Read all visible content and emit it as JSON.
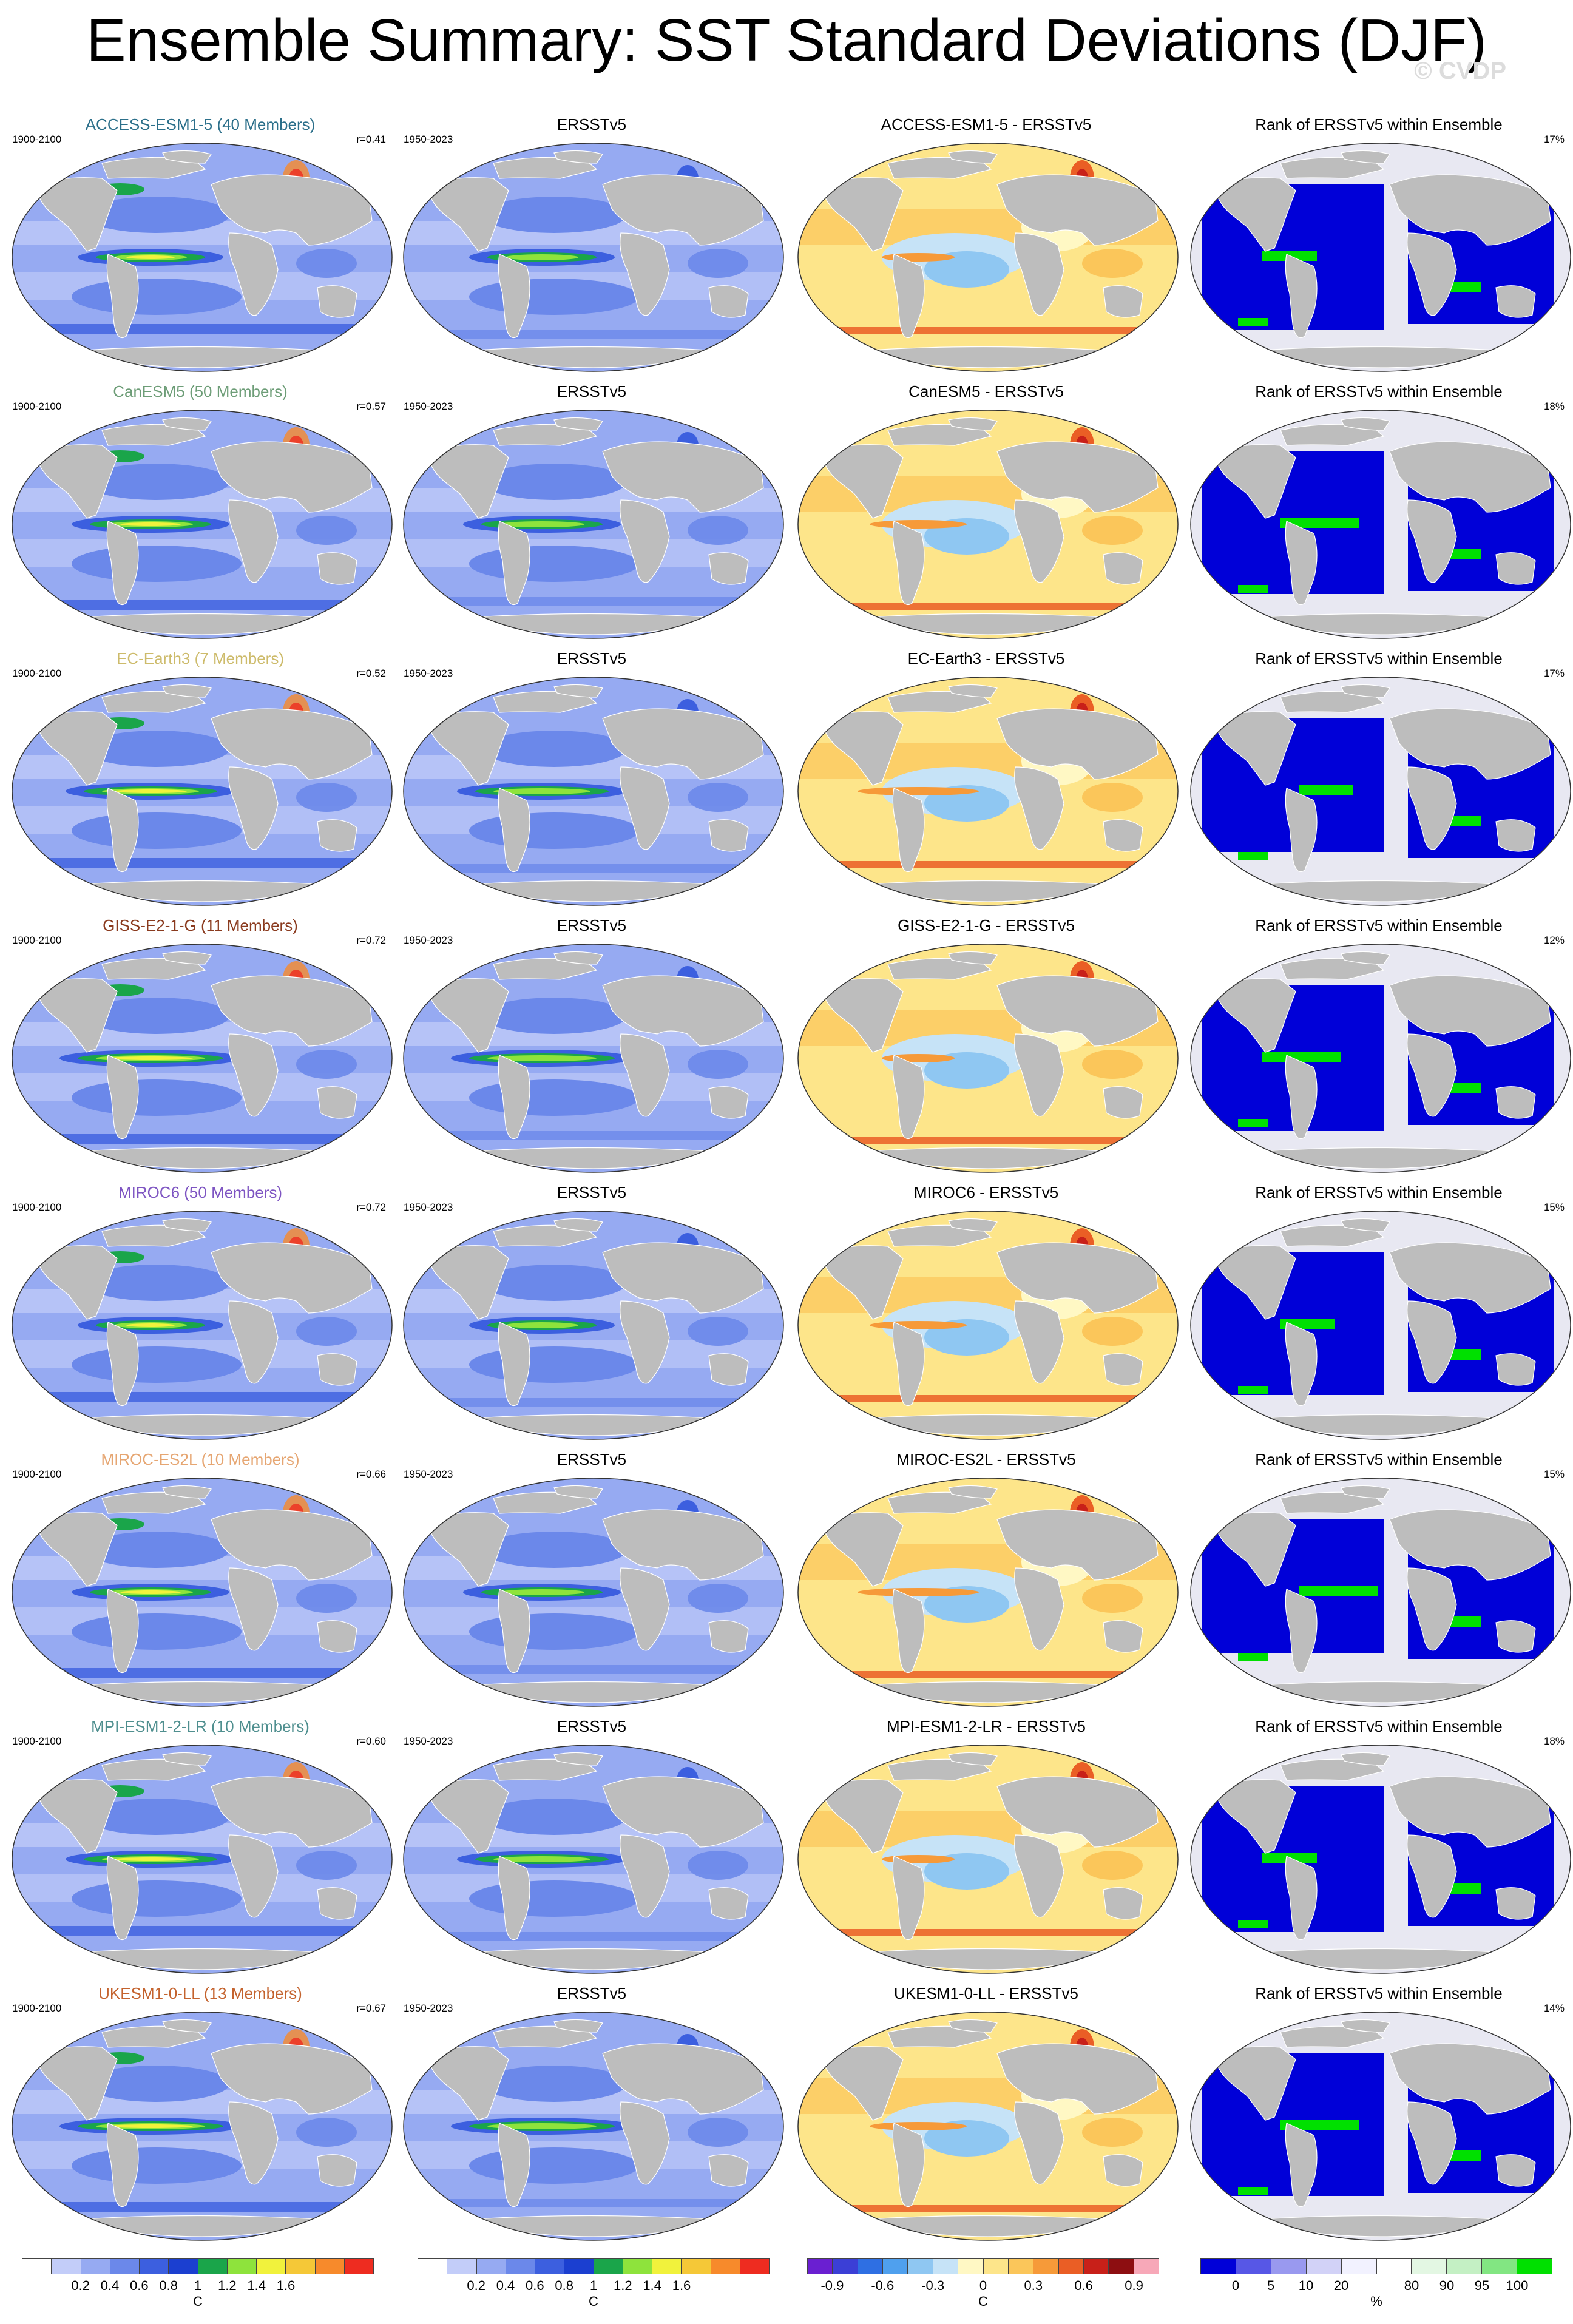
{
  "title": "Ensemble Summary: SST Standard Deviations (DJF)",
  "watermark": "© CVDP",
  "rows": [
    {
      "model": "ACCESS-ESM1-5 (40 Members)",
      "model_color": "#2b6f8a",
      "diff": "ACCESS-ESM1-5 - ERSSTv5",
      "r": "r=0.41",
      "rank_pct": "17%"
    },
    {
      "model": "CanESM5 (50 Members)",
      "model_color": "#6d9d77",
      "diff": "CanESM5 - ERSSTv5",
      "r": "r=0.57",
      "rank_pct": "18%"
    },
    {
      "model": "EC-Earth3 (7 Members)",
      "model_color": "#cdbb6b",
      "diff": "EC-Earth3 - ERSSTv5",
      "r": "r=0.52",
      "rank_pct": "17%"
    },
    {
      "model": "GISS-E2-1-G (11 Members)",
      "model_color": "#8a3a1e",
      "diff": "GISS-E2-1-G - ERSSTv5",
      "r": "r=0.72",
      "rank_pct": "12%"
    },
    {
      "model": "MIROC6 (50 Members)",
      "model_color": "#7e55c2",
      "diff": "MIROC6 - ERSSTv5",
      "r": "r=0.72",
      "rank_pct": "15%"
    },
    {
      "model": "MIROC-ES2L (10 Members)",
      "model_color": "#e6a672",
      "diff": "MIROC-ES2L - ERSSTv5",
      "r": "r=0.66",
      "rank_pct": "15%"
    },
    {
      "model": "MPI-ESM1-2-LR (10 Members)",
      "model_color": "#4f8f8f",
      "diff": "MPI-ESM1-2-LR - ERSSTv5",
      "r": "r=0.60",
      "rank_pct": "18%"
    },
    {
      "model": "UKESM1-0-LL (13 Members)",
      "model_color": "#c4632e",
      "diff": "UKESM1-0-LL - ERSSTv5",
      "r": "r=0.67",
      "rank_pct": "14%"
    }
  ],
  "common": {
    "model_period": "1900-2100",
    "obs_period": "1950-2023",
    "obs_title": "ERSSTv5",
    "rank_title": "Rank of ERSSTv5 within Ensemble"
  },
  "colorbars": {
    "std": {
      "colors": [
        "#ffffff",
        "#c3cdf9",
        "#96aaf2",
        "#6b88ea",
        "#3c5fdf",
        "#1b3fd0",
        "#1aa54a",
        "#8ee33c",
        "#f1f23c",
        "#f5c837",
        "#f78a2b",
        "#ee2c20"
      ],
      "ticks": [
        "0.2",
        "0.4",
        "0.6",
        "0.8",
        "1",
        "1.2",
        "1.4",
        "1.6"
      ],
      "unit": "C"
    },
    "diff": {
      "colors": [
        "#6a1fd1",
        "#3b3fd6",
        "#2e6fe3",
        "#4fa0ee",
        "#8fc7f2",
        "#c6e3f7",
        "#fff8c4",
        "#fde58a",
        "#fbc65a",
        "#f69a39",
        "#ea5e25",
        "#c82019",
        "#8d0e11",
        "#f7a8b8"
      ],
      "ticks": [
        "-0.9",
        "-0.6",
        "-0.3",
        "0",
        "0.3",
        "0.6",
        "0.9"
      ],
      "unit": "C"
    },
    "rank": {
      "colors": [
        "#0000d8",
        "#5757e6",
        "#9999ef",
        "#d2d2f7",
        "#f2f2ff",
        "#ffffff",
        "#e3f7e3",
        "#c4f0c4",
        "#82e682",
        "#00e000"
      ],
      "ticks": [
        "0",
        "5",
        "10",
        "20",
        "80",
        "90",
        "95",
        "100"
      ],
      "unit": "%"
    }
  }
}
